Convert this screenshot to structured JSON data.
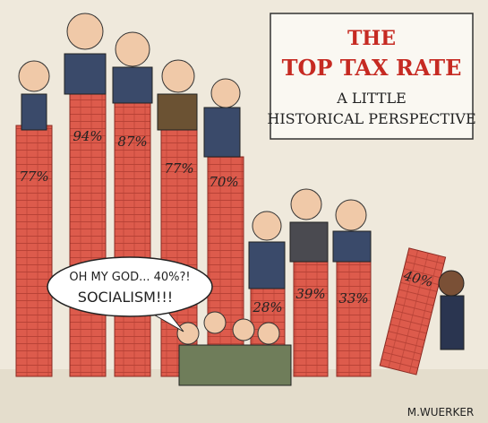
{
  "title_box": {
    "title_line1": "THE",
    "title_line2": "TOP TAX RATE",
    "subtitle_line1": "A LITTLE",
    "subtitle_line2": "HISTORICAL PERSPECTIVE"
  },
  "columns": [
    {
      "label": "77%"
    },
    {
      "label": "94%"
    },
    {
      "label": "87%"
    },
    {
      "label": "77%"
    },
    {
      "label": "70%"
    },
    {
      "label": "28%"
    },
    {
      "label": "39%"
    },
    {
      "label": "33%"
    },
    {
      "label": "40%"
    }
  ],
  "speech_bubble": {
    "line1": "OH MY GOD... 40%?!",
    "line2": "SOCIALISM!!!"
  },
  "signature": "M.WUERKER"
}
